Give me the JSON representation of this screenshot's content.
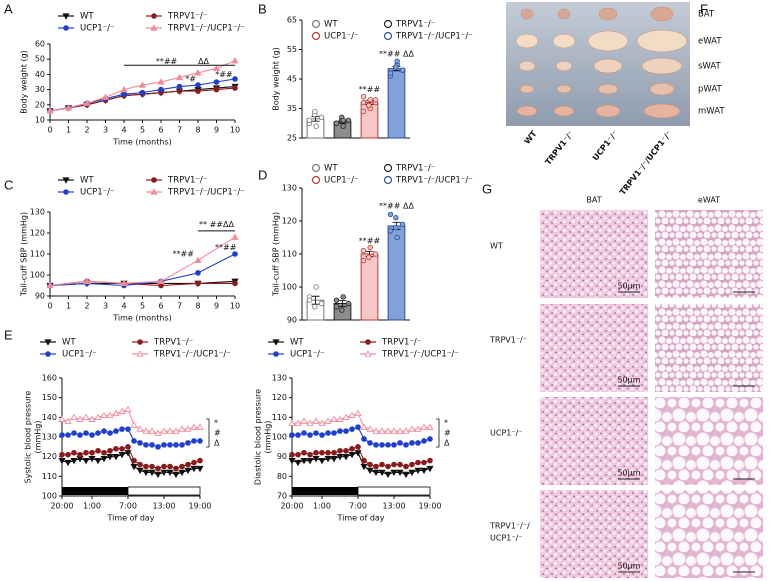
{
  "chart_data": [
    {
      "type": "line",
      "label": "A",
      "xlabel": "Time (months)",
      "ylabel": "Body weight (g)",
      "x": [
        0,
        1,
        2,
        3,
        4,
        5,
        6,
        7,
        8,
        9,
        10
      ],
      "xlim": [
        0,
        10
      ],
      "xticks": [
        0,
        1,
        2,
        3,
        4,
        5,
        6,
        7,
        8,
        9,
        10
      ],
      "ylim": [
        10,
        60
      ],
      "yticks": [
        10,
        20,
        30,
        40,
        50,
        60
      ],
      "series": [
        {
          "name": "WT",
          "color": "#111111",
          "marker": "triangle-down",
          "values": [
            16,
            18,
            20,
            23,
            26,
            27,
            28,
            29,
            30,
            31,
            32
          ]
        },
        {
          "name": "TRPV1⁻/⁻",
          "color": "#8b1a1a",
          "marker": "circle",
          "values": [
            16,
            18,
            20,
            23,
            26,
            27,
            28,
            29,
            29,
            30,
            31
          ]
        },
        {
          "name": "UCP1⁻/⁻",
          "color": "#1f3fcf",
          "marker": "circle",
          "values": [
            16,
            18,
            21,
            24,
            27,
            28,
            30,
            32,
            33,
            35,
            37
          ]
        },
        {
          "name": "TRPV1⁻/⁻/UCP1⁻/⁻",
          "color": "#f4899a",
          "marker": "triangle",
          "values": [
            16,
            18,
            21,
            25,
            30,
            33,
            35,
            38,
            41,
            44,
            49
          ]
        }
      ],
      "brackets": [
        {
          "x": [
            4,
            10
          ],
          "y": 46
        }
      ],
      "annotations": [
        {
          "text": "**##",
          "x": 6.3,
          "y": 48.5
        },
        {
          "text": "ΔΔ",
          "x": 8.3,
          "y": 48.5
        },
        {
          "text": "*#",
          "x": 7.6,
          "y": 37
        },
        {
          "text": "*##",
          "x": 9.4,
          "y": 40
        }
      ]
    },
    {
      "type": "bar",
      "label": "B",
      "ylabel": "Body weight (g)",
      "ylim": [
        25,
        65
      ],
      "yticks": [
        25,
        35,
        45,
        55,
        65
      ],
      "series": [
        {
          "name": "WT",
          "color": "#ffffff",
          "edgecolor": "#777777",
          "values": [
            31.5
          ],
          "errors": [
            0.8
          ],
          "points": [
            30,
            33,
            29,
            32,
            31,
            34
          ]
        },
        {
          "name": "TRPV1⁻/⁻",
          "color": "#8c8c8c",
          "edgecolor": "#222222",
          "values": [
            30.5
          ],
          "errors": [
            0.5
          ],
          "points": [
            30,
            31,
            29,
            31,
            30,
            32,
            31
          ]
        },
        {
          "name": "UCP1⁻/⁻",
          "color": "#f7c6c6",
          "edgecolor": "#c0392b",
          "values": [
            37
          ],
          "errors": [
            0.6
          ],
          "points": [
            34,
            36,
            38,
            37,
            39,
            36,
            35,
            38,
            37,
            36
          ],
          "note": "**##",
          "note_y": 41.5
        },
        {
          "name": "TRPV1⁻/⁻/UCP1⁻/⁻",
          "color": "#7fa2d8",
          "edgecolor": "#2c4f9e",
          "values": [
            48.5
          ],
          "errors": [
            0.7
          ],
          "points": [
            46,
            49,
            50,
            48,
            47,
            49,
            51,
            48
          ],
          "note": "**## ΔΔ",
          "note_y": 53.5
        }
      ]
    },
    {
      "type": "line",
      "label": "C",
      "xlabel": "Time (months)",
      "ylabel": "Tail-cuff SBP (mmHg)",
      "x": [
        0,
        2,
        4,
        6,
        8,
        10
      ],
      "xlim": [
        0,
        10
      ],
      "xticks": [
        0,
        1,
        2,
        3,
        4,
        5,
        6,
        7,
        8,
        9,
        10
      ],
      "ylim": [
        90,
        130
      ],
      "yticks": [
        90,
        100,
        110,
        120,
        130
      ],
      "series": [
        {
          "name": "WT",
          "color": "#111111",
          "marker": "triangle-down",
          "values": [
            95,
            96,
            96,
            96,
            96,
            97
          ]
        },
        {
          "name": "TRPV1⁻/⁻",
          "color": "#8b1a1a",
          "marker": "circle",
          "values": [
            95,
            97,
            96,
            95,
            96,
            96
          ]
        },
        {
          "name": "UCP1⁻/⁻",
          "color": "#1f3fcf",
          "marker": "circle",
          "values": [
            95,
            96,
            95,
            97,
            101,
            110
          ]
        },
        {
          "name": "TRPV1⁻/⁻/UCP1⁻/⁻",
          "color": "#f4899a",
          "marker": "triangle",
          "values": [
            95,
            97,
            96,
            97,
            107,
            118
          ]
        }
      ],
      "brackets": [
        {
          "x": [
            8,
            10
          ],
          "y": 121
        }
      ],
      "annotations": [
        {
          "text": "** ##ΔΔ",
          "x": 9,
          "y": 124
        },
        {
          "text": "**##",
          "x": 7.2,
          "y": 110
        },
        {
          "text": "**##",
          "x": 9.5,
          "y": 113
        }
      ]
    },
    {
      "type": "bar",
      "label": "D",
      "ylabel": "Tail-cuff SBP (mmHg)",
      "ylim": [
        90,
        130
      ],
      "yticks": [
        90,
        100,
        110,
        120,
        130
      ],
      "series": [
        {
          "name": "WT",
          "color": "#ffffff",
          "edgecolor": "#777777",
          "values": [
            96
          ],
          "errors": [
            1.2
          ],
          "points": [
            97,
            94,
            100,
            95,
            96
          ]
        },
        {
          "name": "TRPV1⁻/⁻",
          "color": "#8c8c8c",
          "edgecolor": "#222222",
          "values": [
            95
          ],
          "errors": [
            0.9
          ],
          "points": [
            96,
            93,
            97,
            95,
            94
          ]
        },
        {
          "name": "UCP1⁻/⁻",
          "color": "#f7c6c6",
          "edgecolor": "#c0392b",
          "values": [
            110
          ],
          "errors": [
            0.8
          ],
          "points": [
            111,
            109,
            112,
            110,
            108
          ],
          "note": "**##",
          "note_y": 114
        },
        {
          "name": "TRPV1⁻/⁻/UCP1⁻/⁻",
          "color": "#7fa2d8",
          "edgecolor": "#2c4f9e",
          "values": [
            118.5
          ],
          "errors": [
            1.1
          ],
          "points": [
            117,
            121,
            115,
            119,
            122,
            118
          ],
          "note": "**## ΔΔ",
          "note_y": 124.5
        }
      ]
    },
    {
      "type": "line",
      "label": "E",
      "xlabel": "Time of day",
      "ylabel": [
        "Systolic blood pressure",
        "(mmHg)"
      ],
      "x": [
        0,
        1,
        2,
        3,
        4,
        5,
        6,
        7,
        8,
        9,
        10,
        11,
        12,
        13,
        14,
        15,
        16,
        17,
        18,
        19,
        20,
        21,
        22,
        23
      ],
      "xlim": [
        0,
        23
      ],
      "xticks": [
        {
          "value": 0,
          "label": "20:00"
        },
        {
          "value": 5,
          "label": "1:00"
        },
        {
          "value": 11,
          "label": "7:00"
        },
        {
          "value": 17,
          "label": "13:00"
        },
        {
          "value": 23,
          "label": "19:00"
        }
      ],
      "ylim": [
        100,
        160
      ],
      "yticks": [
        100,
        110,
        120,
        130,
        140,
        150,
        160
      ],
      "light_dark": {
        "dark": [
          0,
          11
        ],
        "light": [
          11,
          23
        ]
      },
      "side_marks": [
        "*",
        "#",
        "Δ"
      ],
      "series": [
        {
          "name": "WT",
          "color": "#111111",
          "marker": "triangle-down",
          "values": [
            118,
            117,
            118,
            119,
            118,
            119,
            118,
            119,
            120,
            120,
            121,
            122,
            115,
            113,
            112,
            112,
            111,
            112,
            112,
            111,
            112,
            113,
            114,
            114
          ]
        },
        {
          "name": "TRPV1⁻/⁻",
          "color": "#8b1a1a",
          "marker": "circle",
          "values": [
            121,
            121,
            122,
            121,
            122,
            122,
            123,
            122,
            123,
            124,
            124,
            125,
            118,
            116,
            115,
            115,
            114,
            115,
            115,
            114,
            115,
            116,
            117,
            118
          ]
        },
        {
          "name": "UCP1⁻/⁻",
          "color": "#1f3fcf",
          "marker": "circle",
          "values": [
            131,
            131,
            132,
            131,
            132,
            131,
            132,
            133,
            132,
            133,
            134,
            134,
            128,
            127,
            126,
            126,
            125,
            126,
            126,
            126,
            126,
            127,
            128,
            128
          ]
        },
        {
          "name": "TRPV1⁻/⁻/UCP1⁻/⁻",
          "color": "#f4899a",
          "marker": "triangle-open",
          "values": [
            139,
            138,
            140,
            139,
            140,
            139,
            140,
            141,
            141,
            142,
            143,
            144,
            136,
            134,
            133,
            133,
            132,
            133,
            133,
            133,
            134,
            134,
            135,
            135
          ]
        }
      ]
    },
    {
      "type": "line",
      "xlabel": "Time of day",
      "ylabel": [
        "Diastolic blood pressure",
        "(mmHg)"
      ],
      "x": [
        0,
        1,
        2,
        3,
        4,
        5,
        6,
        7,
        8,
        9,
        10,
        11,
        12,
        13,
        14,
        15,
        16,
        17,
        18,
        19,
        20,
        21,
        22,
        23
      ],
      "xlim": [
        0,
        23
      ],
      "xticks": [
        {
          "value": 0,
          "label": "20:00"
        },
        {
          "value": 5,
          "label": "1:00"
        },
        {
          "value": 11,
          "label": "7:00"
        },
        {
          "value": 17,
          "label": "13:00"
        },
        {
          "value": 23,
          "label": "19:00"
        }
      ],
      "ylim": [
        70,
        130
      ],
      "yticks": [
        70,
        80,
        90,
        100,
        110,
        120,
        130
      ],
      "light_dark": {
        "dark": [
          0,
          11
        ],
        "light": [
          11,
          23
        ]
      },
      "side_marks": [
        "*",
        "#",
        "Δ"
      ],
      "series": [
        {
          "name": "WT",
          "color": "#111111",
          "marker": "triangle-down",
          "values": [
            88,
            87,
            88,
            88,
            89,
            88,
            89,
            89,
            90,
            90,
            91,
            92,
            85,
            83,
            82,
            82,
            81,
            82,
            82,
            81,
            82,
            83,
            83,
            84
          ]
        },
        {
          "name": "TRPV1⁻/⁻",
          "color": "#8b1a1a",
          "marker": "circle",
          "values": [
            91,
            91,
            92,
            91,
            92,
            92,
            92,
            92,
            93,
            93,
            94,
            95,
            88,
            86,
            85,
            86,
            85,
            86,
            86,
            85,
            86,
            87,
            87,
            88
          ]
        },
        {
          "name": "UCP1⁻/⁻",
          "color": "#1f3fcf",
          "marker": "circle",
          "values": [
            101,
            101,
            102,
            101,
            102,
            101,
            102,
            102,
            103,
            103,
            104,
            105,
            99,
            97,
            96,
            96,
            96,
            96,
            97,
            96,
            97,
            97,
            98,
            99
          ]
        },
        {
          "name": "TRPV1⁻/⁻/UCP1⁻/⁻",
          "color": "#f4899a",
          "marker": "triangle-open",
          "values": [
            107,
            107,
            108,
            107,
            108,
            107,
            108,
            109,
            109,
            110,
            111,
            112,
            105,
            104,
            103,
            103,
            103,
            103,
            103,
            103,
            104,
            104,
            105,
            105
          ]
        }
      ]
    }
  ],
  "photo_f": {
    "label": "F",
    "rows": [
      "BAT",
      "eWAT",
      "sWAT",
      "pWAT",
      "mWAT"
    ],
    "columns": [
      "WT",
      "TRPV1⁻/⁻",
      "UCP1⁻/⁻",
      "TRPV1⁻/⁻/UCP1⁻/⁻"
    ]
  },
  "histology_g": {
    "label": "G",
    "columns": [
      "BAT",
      "eWAT"
    ],
    "rows": [
      [
        "WT"
      ],
      [
        "TRPV1⁻/⁻"
      ],
      [
        "UCP1⁻/⁻"
      ],
      [
        "TRPV1⁻/⁻/",
        "UCP1⁻/⁻"
      ]
    ],
    "scale_bar": "50μm"
  }
}
